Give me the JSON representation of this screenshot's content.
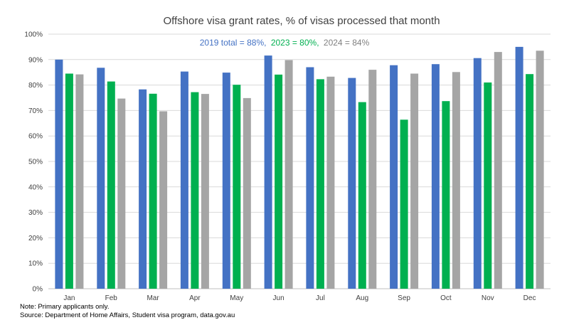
{
  "chart_data": {
    "type": "bar",
    "title": "Offshore visa grant rates, % of visas processed that month",
    "xlabel": "",
    "ylabel": "",
    "ylim": [
      0,
      100
    ],
    "y_ticks": [
      "0%",
      "10%",
      "20%",
      "30%",
      "40%",
      "50%",
      "60%",
      "70%",
      "80%",
      "90%",
      "100%"
    ],
    "grid": true,
    "categories": [
      "Jan",
      "Feb",
      "Mar",
      "Apr",
      "May",
      "Jun",
      "Jul",
      "Aug",
      "Sep",
      "Oct",
      "Nov",
      "Dec"
    ],
    "series": [
      {
        "color": "#4472C4",
        "values": [
          90.0,
          86.8,
          78.3,
          85.3,
          84.9,
          91.6,
          87.0,
          82.8,
          87.8,
          88.2,
          90.6,
          95.0
        ]
      },
      {
        "color": "#00B050",
        "values": [
          84.5,
          81.4,
          76.6,
          77.2,
          80.1,
          84.1,
          82.3,
          73.3,
          66.4,
          73.7,
          81.0,
          84.3
        ]
      },
      {
        "color": "#A5A5A5",
        "values": [
          84.2,
          74.7,
          69.7,
          76.5,
          74.9,
          89.8,
          83.3,
          86.0,
          84.5,
          85.1,
          93.0,
          93.5
        ]
      }
    ],
    "totals_annotation": [
      {
        "text": "2019 total = 88%,",
        "color": "#4472C4"
      },
      {
        "text": "2023 = 80%,",
        "color": "#00B050"
      },
      {
        "text": "2024 = 84%",
        "color": "#808080"
      }
    ]
  },
  "notes": {
    "note": "Note: Primary applicants only.",
    "source": "Source: Department of Home Affairs, Student visa program, data.gov.au"
  }
}
